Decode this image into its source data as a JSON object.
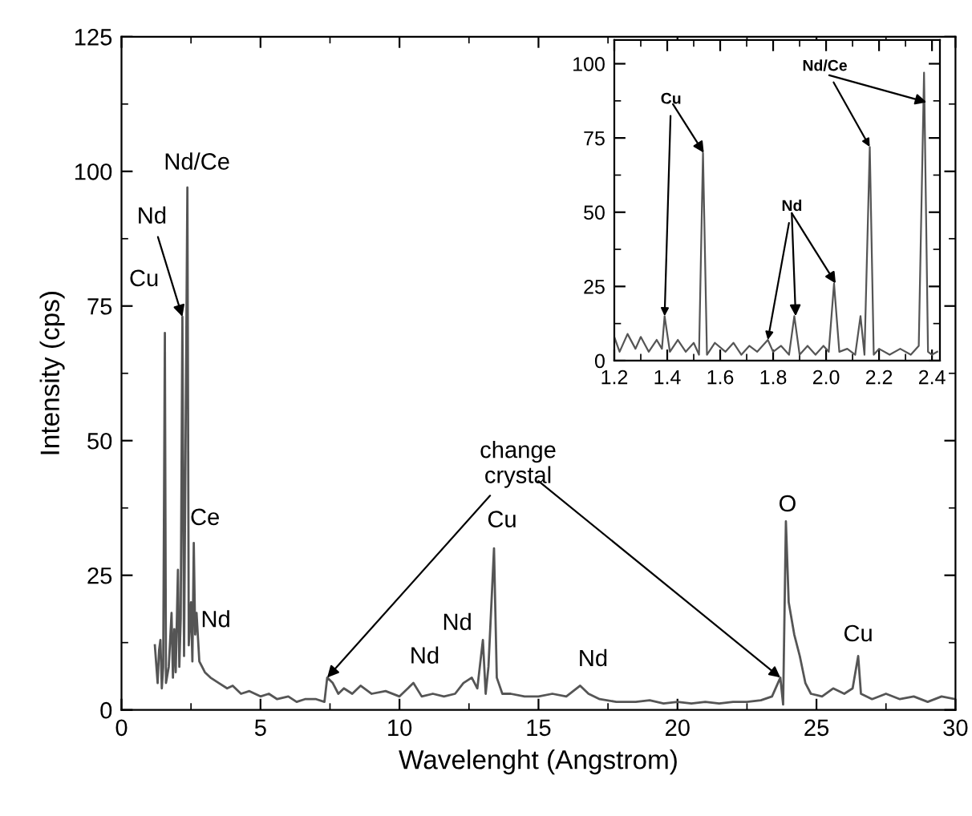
{
  "chart_data": [
    {
      "type": "line",
      "xlabel": "Wavelenght (Angstrom)",
      "ylabel": "Intensity (cps)",
      "xlim": [
        0,
        30
      ],
      "xticks": [
        0,
        5,
        10,
        15,
        20,
        25,
        30
      ],
      "ylim": [
        0,
        125
      ],
      "yticks": [
        0,
        25,
        50,
        75,
        100,
        125
      ],
      "grid": false,
      "legend": false,
      "series": [
        {
          "color": "#555555",
          "x": [
            1.2,
            1.3,
            1.35,
            1.4,
            1.45,
            1.5,
            1.56,
            1.6,
            1.7,
            1.8,
            1.85,
            1.9,
            1.95,
            2.03,
            2.08,
            2.13,
            2.19,
            2.25,
            2.37,
            2.42,
            2.5,
            2.55,
            2.6,
            2.65,
            2.7,
            2.8,
            3.0,
            3.2,
            3.5,
            3.8,
            4.0,
            4.3,
            4.6,
            5.0,
            5.3,
            5.6,
            6.0,
            6.3,
            6.6,
            7.0,
            7.3,
            7.4,
            7.6,
            7.8,
            8.0,
            8.3,
            8.6,
            9.0,
            9.5,
            10.0,
            10.5,
            10.8,
            11.2,
            11.6,
            12.0,
            12.3,
            12.6,
            12.8,
            13.0,
            13.1,
            13.2,
            13.4,
            13.5,
            13.7,
            14.0,
            14.5,
            15.0,
            15.5,
            16.0,
            16.5,
            16.8,
            17.2,
            17.8,
            18.5,
            19.0,
            19.5,
            20.0,
            20.5,
            21.0,
            21.5,
            22.0,
            22.5,
            23.0,
            23.4,
            23.7,
            23.8,
            23.9,
            24.0,
            24.2,
            24.4,
            24.6,
            24.8,
            25.2,
            25.6,
            26.0,
            26.3,
            26.5,
            26.6,
            27.0,
            27.5,
            28.0,
            28.5,
            29.0,
            29.5,
            30.0
          ],
          "values": [
            12,
            5,
            11,
            13,
            4,
            8,
            70,
            5,
            8,
            18,
            6,
            15,
            7,
            26,
            8,
            17,
            73,
            10,
            97,
            12,
            20,
            9,
            31,
            14,
            18,
            9,
            7,
            6,
            5,
            4,
            4.5,
            3,
            3.5,
            2.5,
            3,
            2,
            2.5,
            1.5,
            2,
            2,
            1.5,
            6,
            5,
            3,
            4,
            3,
            4.5,
            3,
            3.5,
            2.5,
            5,
            2.5,
            3,
            2.5,
            3,
            5,
            6,
            4,
            13,
            3,
            8,
            30,
            6,
            3,
            3,
            2.5,
            2.5,
            3,
            2.5,
            4.5,
            3,
            2,
            1.5,
            1.5,
            1.8,
            1.2,
            1.5,
            1.2,
            1.5,
            1.2,
            1.5,
            1.5,
            1.8,
            2.5,
            6,
            1,
            35,
            20,
            14,
            10,
            5,
            3,
            2.5,
            4,
            3,
            4,
            10,
            3,
            2,
            3,
            2,
            2.5,
            1.5,
            2.5,
            2
          ]
        }
      ],
      "annotations": [
        {
          "text": "Cu",
          "x": 1.56,
          "y": 70
        },
        {
          "text": "Nd",
          "x": 2.19,
          "y": 73
        },
        {
          "text": "Nd/Ce",
          "x": 2.37,
          "y": 97
        },
        {
          "text": "Ce",
          "x": 2.6,
          "y": 31
        },
        {
          "text": "Nd",
          "x": 2.7,
          "y": 18
        },
        {
          "text": "Nd",
          "x": 10.5,
          "y": 5
        },
        {
          "text": "Nd",
          "x": 13.0,
          "y": 13
        },
        {
          "text": "Cu",
          "x": 13.4,
          "y": 30
        },
        {
          "text": "Nd",
          "x": 16.5,
          "y": 4.5
        },
        {
          "text": "O",
          "x": 23.9,
          "y": 35
        },
        {
          "text": "Cu",
          "x": 26.5,
          "y": 10
        },
        {
          "text": "change\ncrystal",
          "x": 7.4,
          "y": 6
        }
      ]
    },
    {
      "type": "line",
      "xlim": [
        1.2,
        2.43
      ],
      "xticks": [
        1.2,
        1.4,
        1.6,
        1.8,
        {
          "value": 2,
          "label": "2.0"
        },
        2.2,
        2.4
      ],
      "ylim": [
        0,
        108
      ],
      "yticks": [
        0,
        25,
        50,
        75,
        100
      ],
      "grid": false,
      "legend": false,
      "series": [
        {
          "color": "#555555",
          "x": [
            1.2,
            1.22,
            1.25,
            1.28,
            1.3,
            1.33,
            1.36,
            1.38,
            1.39,
            1.41,
            1.44,
            1.47,
            1.5,
            1.52,
            1.535,
            1.55,
            1.58,
            1.62,
            1.65,
            1.68,
            1.71,
            1.74,
            1.78,
            1.8,
            1.83,
            1.86,
            1.88,
            1.9,
            1.93,
            1.96,
            1.99,
            2.01,
            2.03,
            2.05,
            2.08,
            2.11,
            2.13,
            2.145,
            2.165,
            2.18,
            2.2,
            2.24,
            2.28,
            2.32,
            2.35,
            2.37,
            2.385,
            2.4,
            2.42
          ],
          "values": [
            8,
            3,
            9,
            4,
            8,
            3,
            7,
            4,
            15,
            3,
            7,
            3,
            6,
            2,
            70,
            2,
            6,
            3,
            6,
            2,
            5,
            3,
            7,
            3,
            5,
            2,
            15,
            2,
            5,
            2,
            5,
            3,
            26,
            3,
            4,
            2,
            15,
            2,
            72,
            2,
            4,
            2,
            4,
            2,
            5,
            97,
            3,
            2,
            3
          ]
        }
      ],
      "annotations": [
        {
          "text": "Cu",
          "x": 1.39,
          "y": 15
        },
        {
          "text": "Nd",
          "x": 1.78,
          "y": 7
        },
        {
          "text": "Nd/Ce",
          "x": 2.165,
          "y": 72
        }
      ]
    }
  ]
}
